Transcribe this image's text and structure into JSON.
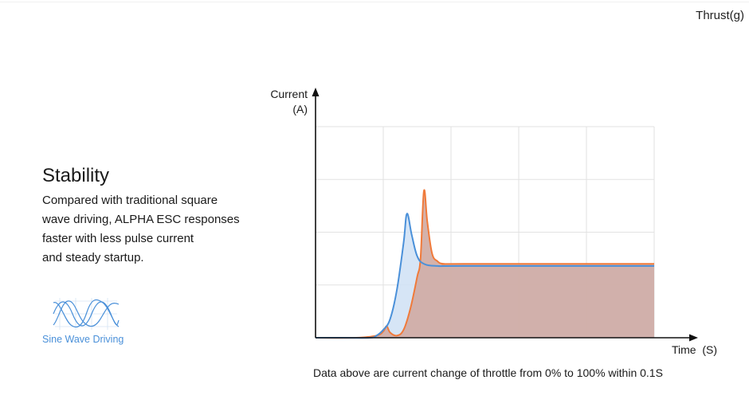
{
  "header": {
    "thrust_label": "Thrust(g)"
  },
  "feature": {
    "title": "Stability",
    "desc_lines": [
      "Compared with traditional square",
      "wave driving, ALPHA ESC responses",
      "faster with less pulse current",
      "and steady startup."
    ],
    "icon_name": "sine-wave-icon",
    "icon_label": "Sine Wave Driving"
  },
  "chart_data": {
    "type": "area",
    "ylabel_line1": "Current",
    "ylabel_line2": "(A)",
    "xlabel": "Time  (S)",
    "xlim": [
      0,
      5
    ],
    "ylim": [
      0,
      4
    ],
    "grid": true,
    "series": [
      {
        "color": "#4a90d9",
        "fill": "#cfe0f5",
        "x": [
          0,
          0.4,
          0.8,
          0.9,
          1.0,
          1.1,
          1.2,
          1.3,
          1.35,
          1.42,
          1.5,
          1.6,
          1.8,
          2.2,
          5.0
        ],
        "y": [
          0.0,
          0.0,
          0.0,
          0.04,
          0.15,
          0.35,
          0.9,
          1.8,
          2.35,
          1.95,
          1.55,
          1.4,
          1.36,
          1.36,
          1.36
        ]
      },
      {
        "color": "#f07a3a",
        "fill": "#d0aba4",
        "x": [
          0,
          0.6,
          0.9,
          1.0,
          1.05,
          1.1,
          1.2,
          1.3,
          1.4,
          1.5,
          1.55,
          1.6,
          1.65,
          1.72,
          1.8,
          1.9,
          2.2,
          5.0
        ],
        "y": [
          0.0,
          0.0,
          0.04,
          0.12,
          0.22,
          0.1,
          0.04,
          0.15,
          0.55,
          1.15,
          1.5,
          2.78,
          2.2,
          1.6,
          1.45,
          1.4,
          1.4,
          1.4
        ]
      }
    ]
  },
  "caption": "Data above are current change of throttle from 0% to 100% within 0.1S"
}
